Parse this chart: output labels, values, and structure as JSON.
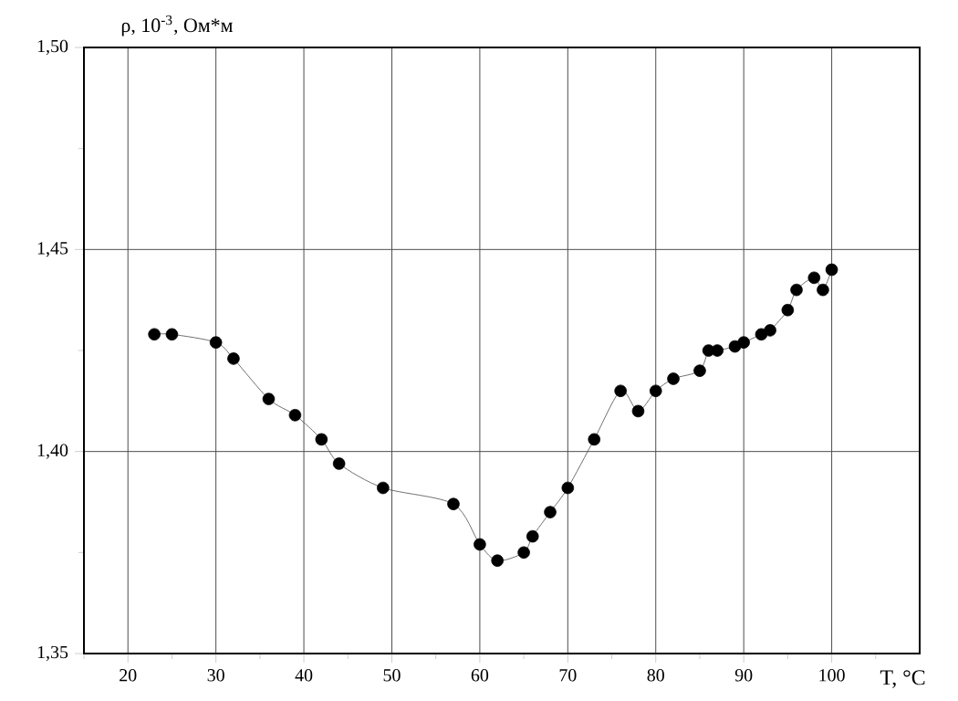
{
  "chart_data": {
    "type": "line",
    "xlabel": "T, °C",
    "ylabel": "ρ, 10$^{-3}$, Ом*м",
    "xlim": [
      15,
      110
    ],
    "ylim": [
      1.35,
      1.5
    ],
    "xticks": [
      {
        "value": 15,
        "label": null
      },
      20,
      {
        "value": 25,
        "label": null
      },
      30,
      {
        "value": 35,
        "label": null
      },
      40,
      {
        "value": 45,
        "label": null
      },
      50,
      {
        "value": 55,
        "label": null
      },
      60,
      {
        "value": 65,
        "label": null
      },
      70,
      {
        "value": 75,
        "label": null
      },
      80,
      {
        "value": 85,
        "label": null
      },
      90,
      {
        "value": 95,
        "label": null
      },
      100,
      {
        "value": 105,
        "label": null
      }
    ],
    "yticks": [
      {
        "value": 1.35,
        "label": "1,35"
      },
      {
        "value": 1.375,
        "label": null
      },
      {
        "value": 1.4,
        "label": "1,40"
      },
      {
        "value": 1.425,
        "label": null
      },
      {
        "value": 1.45,
        "label": "1,45"
      },
      {
        "value": 1.475,
        "label": null
      },
      {
        "value": 1.5,
        "label": "1,50"
      }
    ],
    "grid": true,
    "marker": "circle",
    "line_style": "solid",
    "series": [
      {
        "color": "#000000",
        "x": [
          23,
          25,
          30,
          32,
          36,
          39,
          42,
          44,
          49,
          57,
          60,
          62,
          65,
          66,
          68,
          70,
          73,
          76,
          78,
          80,
          82,
          85,
          86,
          87,
          89,
          90,
          92,
          93,
          95,
          96,
          98,
          99,
          100
        ],
        "values": [
          1.429,
          1.429,
          1.427,
          1.423,
          1.413,
          1.409,
          1.403,
          1.397,
          1.391,
          1.387,
          1.377,
          1.373,
          1.375,
          1.379,
          1.385,
          1.391,
          1.403,
          1.415,
          1.41,
          1.415,
          1.418,
          1.42,
          1.425,
          1.425,
          1.426,
          1.427,
          1.429,
          1.43,
          1.435,
          1.44,
          1.443,
          1.44,
          1.445
        ]
      }
    ]
  }
}
